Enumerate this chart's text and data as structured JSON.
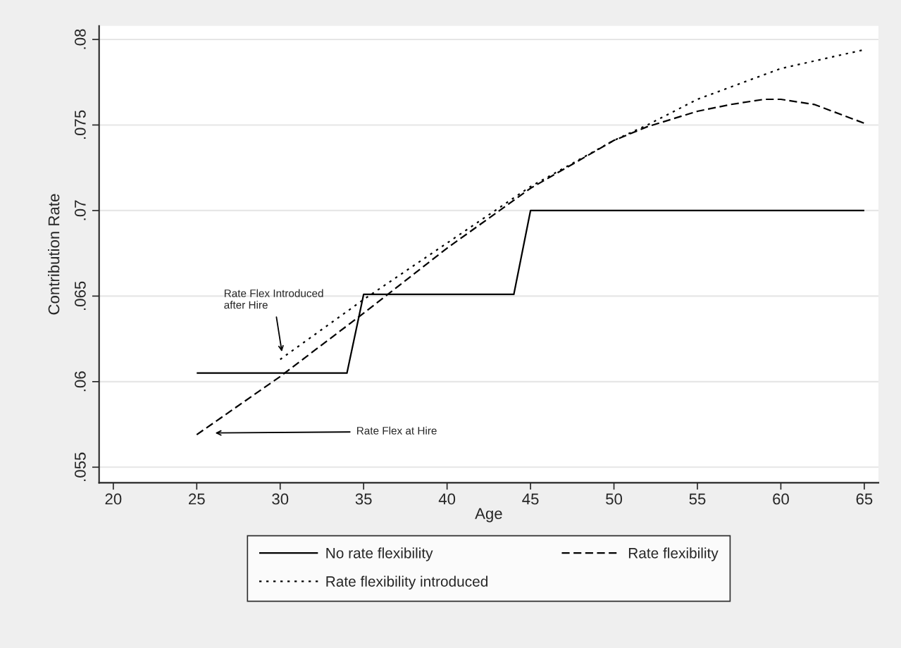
{
  "chart_data": {
    "type": "line",
    "xlabel": "Age",
    "ylabel": "Contribution Rate",
    "xlim": [
      19.15,
      65.85
    ],
    "xticks": [
      20,
      25,
      30,
      35,
      40,
      45,
      50,
      55,
      60,
      65
    ],
    "ylim": [
      0.05409,
      0.08079
    ],
    "yticks": [
      {
        "value": 0.055,
        "label": ".055"
      },
      {
        "value": 0.06,
        "label": ".06"
      },
      {
        "value": 0.065,
        "label": ".065"
      },
      {
        "value": 0.07,
        "label": ".07"
      },
      {
        "value": 0.075,
        "label": ".075"
      },
      {
        "value": 0.08,
        "label": ".08"
      }
    ],
    "grid": "y",
    "legend": "bottom",
    "series": [
      {
        "name": "No rate flexibility",
        "color": "#000000",
        "line_style": "solid",
        "x": [
          25,
          34,
          35,
          44,
          45,
          65
        ],
        "values": [
          0.0605,
          0.0605,
          0.0651,
          0.0651,
          0.07,
          0.07
        ]
      },
      {
        "name": "Rate flexibility",
        "color": "#000000",
        "line_style": "dashed",
        "x": [
          25,
          30,
          35,
          40,
          45,
          50,
          52,
          55,
          57,
          59,
          60,
          62,
          65
        ],
        "values": [
          0.0569,
          0.0603,
          0.064,
          0.0678,
          0.0713,
          0.0741,
          0.0749,
          0.0758,
          0.0762,
          0.0765,
          0.0765,
          0.0762,
          0.0751
        ]
      },
      {
        "name": "Rate flexibility introduced",
        "color": "#000000",
        "line_style": "dotted",
        "x": [
          30,
          35,
          40,
          45,
          50,
          52,
          55,
          60,
          65
        ],
        "values": [
          0.0613,
          0.0648,
          0.0681,
          0.0714,
          0.0741,
          0.075,
          0.0765,
          0.0783,
          0.0794
        ]
      }
    ],
    "annotations": [
      "Rate Flex Introduced\nafter Hire",
      "Rate Flex at Hire"
    ]
  }
}
